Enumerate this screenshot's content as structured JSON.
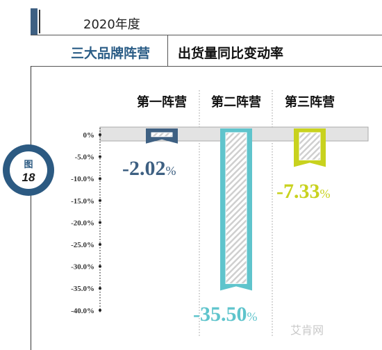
{
  "header": {
    "year": "2020年度",
    "brand_label": "三大品牌阵营",
    "metric_label": "出货量同比变动率"
  },
  "figure_badge": {
    "word": "图",
    "number": "18"
  },
  "watermark": "艾肯网",
  "colors": {
    "camp1": "#3e6082",
    "camp2": "#5fc4cc",
    "camp3": "#c8d21e",
    "accent": "#3e6082"
  },
  "chart_data": {
    "type": "bar",
    "categories": [
      "第一阵营",
      "第二阵营",
      "第三阵营"
    ],
    "values": [
      -2.02,
      -35.5,
      -7.33
    ],
    "value_labels": [
      "-2.02",
      "-35.50",
      "-7.33"
    ],
    "value_suffix": "%",
    "ylim": [
      -40,
      0
    ],
    "yticks": [
      0,
      -5,
      -10,
      -15,
      -20,
      -25,
      -30,
      -35,
      -40
    ],
    "ytick_labels": [
      "0%",
      "-5.0%",
      "-10.0%",
      "-15.0%",
      "-20.0%",
      "-25.0%",
      "-30.0%",
      "-35.0%",
      "-40.0%"
    ],
    "title": "",
    "xlabel": "",
    "ylabel": ""
  }
}
